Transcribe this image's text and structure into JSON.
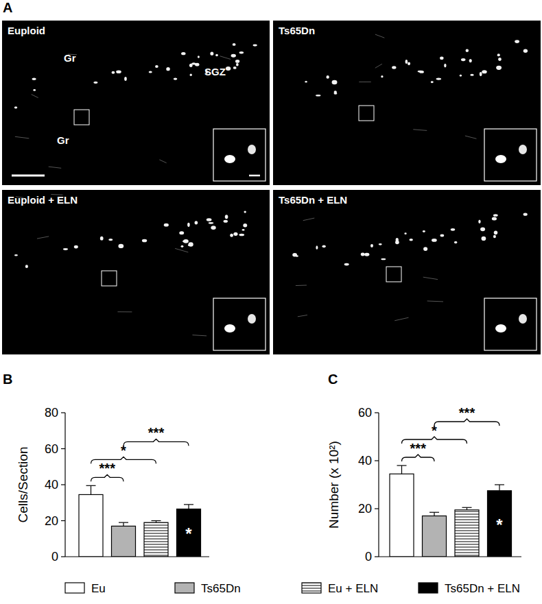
{
  "panel_labels": [
    "A",
    "B",
    "C"
  ],
  "micrographs": [
    {
      "title": "Euploid",
      "labels": [
        "Gr",
        "SGZ",
        "Gr"
      ]
    },
    {
      "title": "Ts65Dn",
      "labels": []
    },
    {
      "title": "Euploid + ELN",
      "labels": []
    },
    {
      "title": "Ts65Dn + ELN",
      "labels": []
    }
  ],
  "chart_data": [
    {
      "type": "bar",
      "y_label": "Cells/Section",
      "categories": [
        "Eu",
        "Ts65Dn",
        "Eu + ELN",
        "Ts65Dn + ELN"
      ],
      "values": [
        34.5,
        17,
        19,
        26.5
      ],
      "errors": [
        5,
        2,
        1,
        2.5
      ],
      "colors": [
        "#ffffff",
        "#b3b3b3",
        "#ffffff",
        "#000000"
      ],
      "ylim": [
        0,
        80
      ],
      "yticks": [
        0,
        20,
        40,
        60,
        80
      ],
      "tick_labels": "y",
      "legend": "bottom",
      "comparisons": [
        {
          "from": 0,
          "to": 1,
          "label": "***"
        },
        {
          "from": 0,
          "to": 2,
          "label": "*"
        },
        {
          "from": 1,
          "to": 3,
          "label": "***"
        }
      ],
      "annotations": [
        {
          "index": 3,
          "label": "*"
        }
      ]
    },
    {
      "type": "bar",
      "y_label": "Number (x 10²)",
      "categories": [
        "Eu",
        "Ts65Dn",
        "Eu + ELN",
        "Ts65Dn + ELN"
      ],
      "values": [
        34.5,
        17,
        19.5,
        27.5
      ],
      "errors": [
        3.5,
        1.5,
        1,
        2.5
      ],
      "colors": [
        "#ffffff",
        "#b3b3b3",
        "#ffffff",
        "#000000"
      ],
      "ylim": [
        0,
        60
      ],
      "yticks": [
        0,
        20,
        40,
        60
      ],
      "tick_labels": "y",
      "comparisons": [
        {
          "from": 0,
          "to": 1,
          "label": "***"
        },
        {
          "from": 0,
          "to": 2,
          "label": "*"
        },
        {
          "from": 1,
          "to": 3,
          "label": "***"
        }
      ],
      "annotations": [
        {
          "index": 3,
          "label": "*"
        }
      ]
    }
  ]
}
